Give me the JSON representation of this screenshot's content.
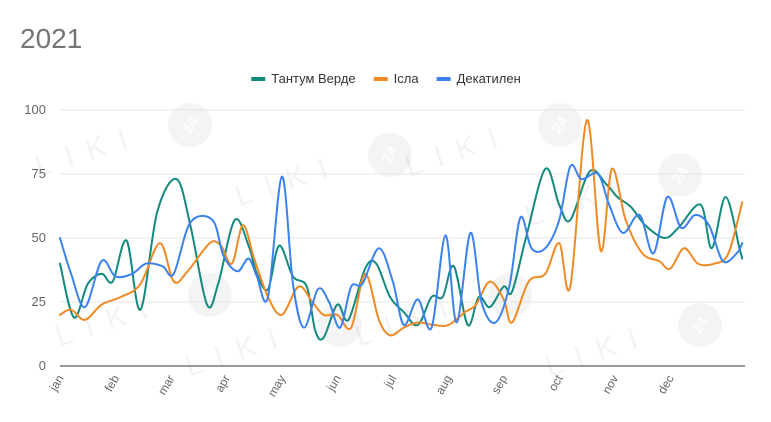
{
  "chart_data": {
    "type": "line",
    "title": "2021",
    "xlabel": "",
    "ylabel": "",
    "ylim": [
      0,
      100
    ],
    "yticks": [
      0,
      25,
      50,
      75,
      100
    ],
    "x_range": [
      0,
      12.35
    ],
    "month_ticks": [
      {
        "label": "jan",
        "x": 0
      },
      {
        "label": "feb",
        "x": 1
      },
      {
        "label": "mar",
        "x": 2
      },
      {
        "label": "apr",
        "x": 3
      },
      {
        "label": "may",
        "x": 4
      },
      {
        "label": "jun",
        "x": 5
      },
      {
        "label": "jul",
        "x": 6
      },
      {
        "label": "aug",
        "x": 7
      },
      {
        "label": "sep",
        "x": 8
      },
      {
        "label": "oct",
        "x": 9
      },
      {
        "label": "nov",
        "x": 10
      },
      {
        "label": "dec",
        "x": 11
      }
    ],
    "grid": true,
    "legend_position": "top-center",
    "series": [
      {
        "name": "Тантум Верде",
        "color": "#128a7e",
        "points": [
          [
            0.0,
            40
          ],
          [
            0.25,
            19
          ],
          [
            0.5,
            32
          ],
          [
            0.75,
            36
          ],
          [
            0.95,
            33
          ],
          [
            1.2,
            49
          ],
          [
            1.45,
            22
          ],
          [
            1.75,
            60
          ],
          [
            2.1,
            73
          ],
          [
            2.35,
            55
          ],
          [
            2.65,
            24
          ],
          [
            2.85,
            32
          ],
          [
            3.15,
            57
          ],
          [
            3.4,
            47
          ],
          [
            3.55,
            36
          ],
          [
            3.75,
            30
          ],
          [
            3.95,
            47
          ],
          [
            4.2,
            35
          ],
          [
            4.45,
            31
          ],
          [
            4.6,
            14
          ],
          [
            4.75,
            11
          ],
          [
            5.0,
            24
          ],
          [
            5.2,
            18
          ],
          [
            5.5,
            38
          ],
          [
            5.7,
            40
          ],
          [
            5.95,
            27
          ],
          [
            6.2,
            21
          ],
          [
            6.45,
            16
          ],
          [
            6.7,
            27
          ],
          [
            6.9,
            27
          ],
          [
            7.1,
            39
          ],
          [
            7.35,
            16
          ],
          [
            7.55,
            27
          ],
          [
            7.75,
            23
          ],
          [
            8.0,
            31
          ],
          [
            8.15,
            29
          ],
          [
            8.4,
            50
          ],
          [
            8.75,
            77
          ],
          [
            9.0,
            63
          ],
          [
            9.2,
            57
          ],
          [
            9.55,
            76
          ],
          [
            9.85,
            71
          ],
          [
            10.05,
            66
          ],
          [
            10.3,
            62
          ],
          [
            10.55,
            55
          ],
          [
            10.9,
            50
          ],
          [
            11.15,
            54
          ],
          [
            11.55,
            63
          ],
          [
            11.75,
            46
          ],
          [
            12.0,
            66
          ],
          [
            12.25,
            46
          ],
          [
            12.3,
            42
          ]
        ]
      },
      {
        "name": "Ісла",
        "color": "#f08a24",
        "points": [
          [
            0.0,
            20
          ],
          [
            0.2,
            22
          ],
          [
            0.45,
            18
          ],
          [
            0.75,
            24
          ],
          [
            1.1,
            27
          ],
          [
            1.45,
            32
          ],
          [
            1.8,
            48
          ],
          [
            2.05,
            33
          ],
          [
            2.3,
            37
          ],
          [
            2.7,
            48
          ],
          [
            2.9,
            47
          ],
          [
            3.1,
            40
          ],
          [
            3.3,
            55
          ],
          [
            3.5,
            42
          ],
          [
            3.75,
            27
          ],
          [
            4.0,
            20
          ],
          [
            4.3,
            31
          ],
          [
            4.55,
            25
          ],
          [
            4.75,
            20
          ],
          [
            5.0,
            20
          ],
          [
            5.25,
            15
          ],
          [
            5.5,
            36
          ],
          [
            5.75,
            18
          ],
          [
            5.95,
            12
          ],
          [
            6.2,
            15
          ],
          [
            6.45,
            17
          ],
          [
            6.75,
            16
          ],
          [
            7.0,
            16
          ],
          [
            7.3,
            21
          ],
          [
            7.5,
            24
          ],
          [
            7.75,
            33
          ],
          [
            8.0,
            26
          ],
          [
            8.15,
            17
          ],
          [
            8.45,
            33
          ],
          [
            8.75,
            36
          ],
          [
            9.0,
            48
          ],
          [
            9.2,
            31
          ],
          [
            9.5,
            96
          ],
          [
            9.75,
            45
          ],
          [
            9.95,
            77
          ],
          [
            10.2,
            57
          ],
          [
            10.5,
            44
          ],
          [
            10.8,
            41
          ],
          [
            11.0,
            38
          ],
          [
            11.25,
            46
          ],
          [
            11.5,
            40
          ],
          [
            11.8,
            40
          ],
          [
            12.05,
            44
          ],
          [
            12.3,
            64
          ]
        ]
      },
      {
        "name": "Декатилен",
        "color": "#3b82f0",
        "points": [
          [
            0.0,
            50
          ],
          [
            0.2,
            36
          ],
          [
            0.45,
            23
          ],
          [
            0.75,
            41
          ],
          [
            1.0,
            35
          ],
          [
            1.3,
            36
          ],
          [
            1.55,
            40
          ],
          [
            1.85,
            39
          ],
          [
            2.05,
            36
          ],
          [
            2.35,
            56
          ],
          [
            2.75,
            57
          ],
          [
            2.95,
            43
          ],
          [
            3.2,
            37
          ],
          [
            3.4,
            42
          ],
          [
            3.55,
            35
          ],
          [
            3.75,
            27
          ],
          [
            4.0,
            74
          ],
          [
            4.2,
            32
          ],
          [
            4.4,
            15
          ],
          [
            4.65,
            30
          ],
          [
            4.85,
            25
          ],
          [
            5.05,
            15
          ],
          [
            5.25,
            31
          ],
          [
            5.45,
            32
          ],
          [
            5.75,
            46
          ],
          [
            6.0,
            33
          ],
          [
            6.2,
            16
          ],
          [
            6.45,
            26
          ],
          [
            6.7,
            15
          ],
          [
            6.95,
            51
          ],
          [
            7.15,
            17
          ],
          [
            7.4,
            52
          ],
          [
            7.6,
            25
          ],
          [
            7.85,
            17
          ],
          [
            8.1,
            31
          ],
          [
            8.3,
            58
          ],
          [
            8.5,
            46
          ],
          [
            8.75,
            46
          ],
          [
            9.0,
            57
          ],
          [
            9.2,
            78
          ],
          [
            9.4,
            73
          ],
          [
            9.7,
            75
          ],
          [
            9.9,
            63
          ],
          [
            10.15,
            52
          ],
          [
            10.45,
            59
          ],
          [
            10.7,
            44
          ],
          [
            10.95,
            66
          ],
          [
            11.2,
            54
          ],
          [
            11.45,
            59
          ],
          [
            11.7,
            55
          ],
          [
            11.95,
            41
          ],
          [
            12.2,
            44
          ],
          [
            12.3,
            48
          ]
        ]
      }
    ]
  },
  "watermark": {
    "text": "LIKI",
    "badge": "24"
  }
}
